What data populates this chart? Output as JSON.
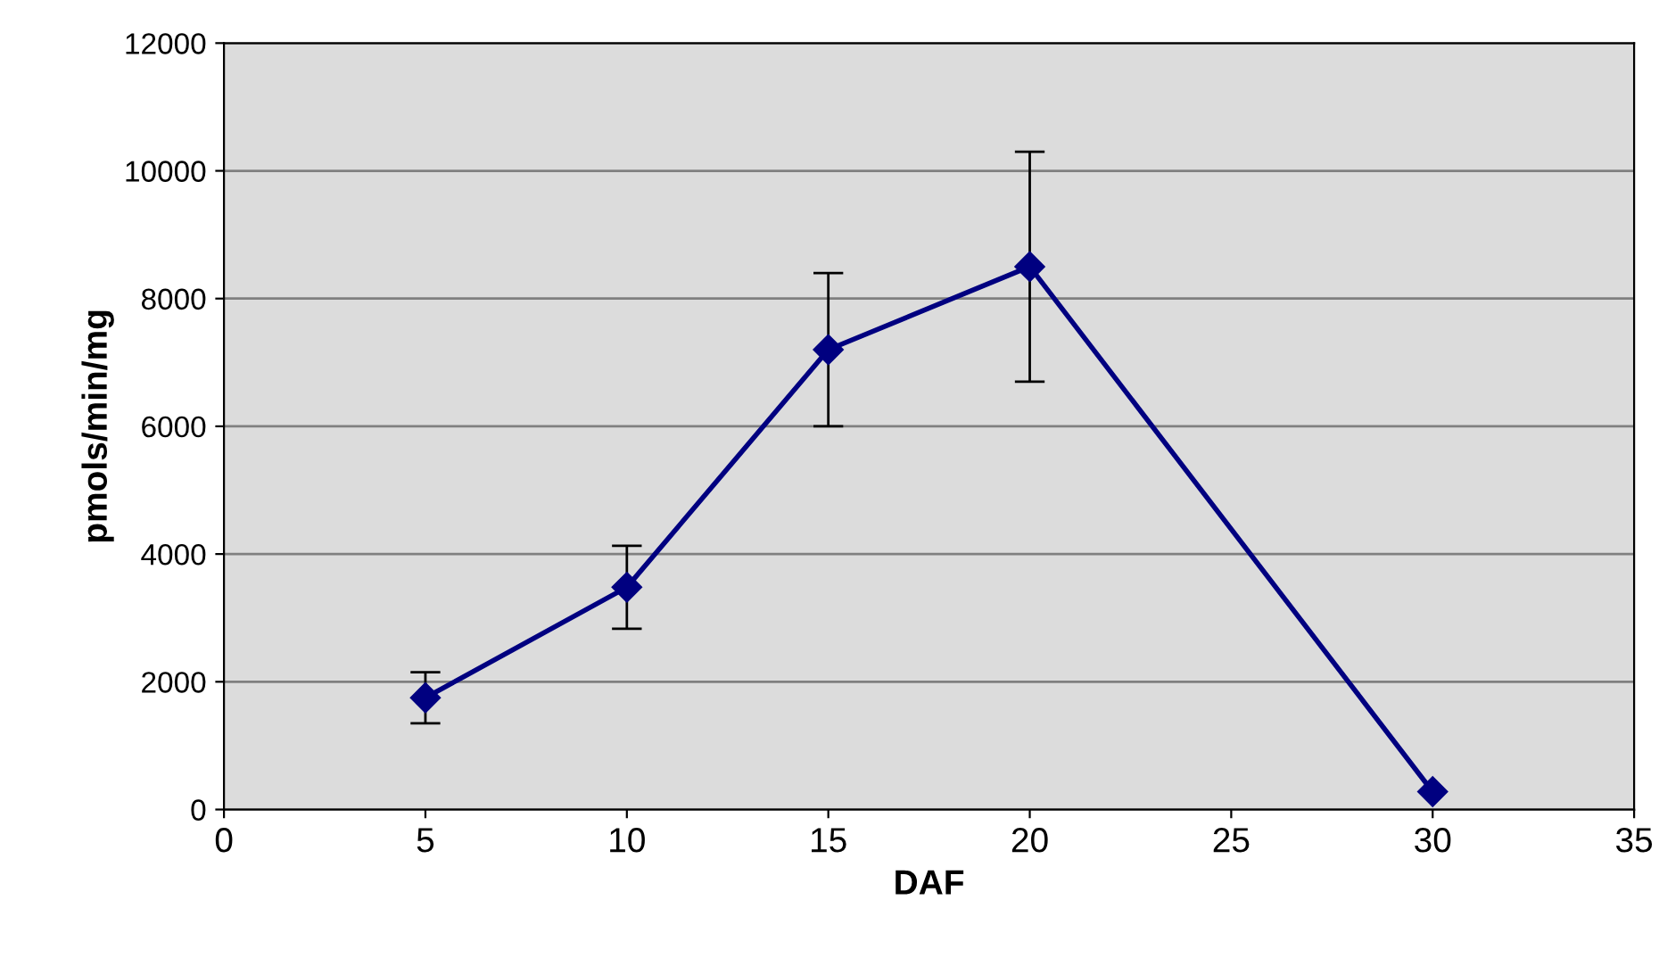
{
  "chart_data": {
    "type": "line",
    "xlabel": "DAF",
    "ylabel": "pmols/min/mg",
    "x": [
      5,
      10,
      15,
      20,
      30
    ],
    "series": [
      {
        "color": "#000080",
        "values": [
          1750,
          3480,
          7200,
          8500,
          280
        ],
        "errors": [
          400,
          650,
          1200,
          1800,
          null
        ]
      }
    ],
    "xlim": [
      0,
      35
    ],
    "xticks": [
      0,
      5,
      10,
      15,
      20,
      25,
      30,
      35
    ],
    "ylim": [
      0,
      12000
    ],
    "yticks": [
      0,
      2000,
      4000,
      6000,
      8000,
      10000,
      12000
    ],
    "grid": "y",
    "marker": "diamond",
    "line_style": "solid"
  }
}
